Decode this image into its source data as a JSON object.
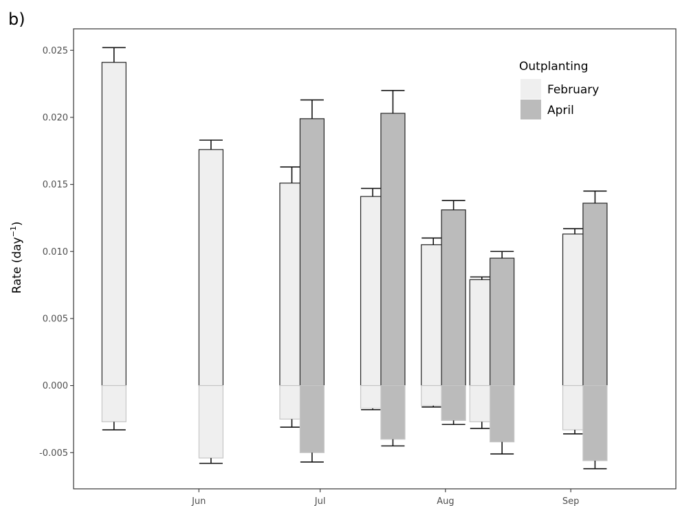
{
  "panel_label": "b)",
  "chart_data": {
    "type": "bar",
    "ylabel": "Rate (day",
    "ylabel_superscript": "−1",
    "ylabel_close": ")",
    "xlabel": "",
    "ylim": [
      -0.0077,
      0.0266
    ],
    "y_ticks": [
      "0.025",
      "0.020",
      "0.015",
      "0.010",
      "0.005",
      "0.000",
      "-0.005"
    ],
    "y_tick_values": [
      0.025,
      0.02,
      0.015,
      0.01,
      0.005,
      0.0,
      -0.005
    ],
    "x_axis": {
      "type": "date",
      "range": [
        "2023-05-01",
        "2023-09-27"
      ],
      "ticks": [
        {
          "date": "2023-06-01",
          "label": "Jun"
        },
        {
          "date": "2023-07-01",
          "label": "Jul"
        },
        {
          "date": "2023-08-01",
          "label": "Aug"
        },
        {
          "date": "2023-09-01",
          "label": "Sep"
        }
      ]
    },
    "grid": false,
    "legend": {
      "title": "Outplanting",
      "position": "top-right",
      "entries": [
        {
          "name": "February",
          "color": "#efefef"
        },
        {
          "name": "April",
          "color": "#bbbbbb"
        }
      ]
    },
    "series": [
      {
        "name": "February",
        "color": "#efefef",
        "points": [
          {
            "date": "2023-05-11",
            "value": 0.0241,
            "err_hi": 0.0252
          },
          {
            "date": "2023-05-11",
            "value": -0.0027,
            "err_lo": -0.0033
          },
          {
            "date": "2023-06-04",
            "value": 0.0176,
            "err_hi": 0.0183
          },
          {
            "date": "2023-06-04",
            "value": -0.0054,
            "err_lo": -0.0058
          },
          {
            "date": "2023-06-24",
            "value": 0.0151,
            "err_hi": 0.0163
          },
          {
            "date": "2023-06-24",
            "value": -0.0025,
            "err_lo": -0.0031
          },
          {
            "date": "2023-07-14",
            "value": 0.0141,
            "err_hi": 0.0147
          },
          {
            "date": "2023-07-14",
            "value": -0.0017,
            "err_lo": -0.0018
          },
          {
            "date": "2023-07-29",
            "value": 0.0105,
            "err_hi": 0.011
          },
          {
            "date": "2023-07-29",
            "value": -0.0015,
            "err_lo": -0.0016
          },
          {
            "date": "2023-08-10",
            "value": 0.0079,
            "err_hi": 0.0081
          },
          {
            "date": "2023-08-10",
            "value": -0.0027,
            "err_lo": -0.0032
          },
          {
            "date": "2023-09-02",
            "value": 0.0113,
            "err_hi": 0.0117
          },
          {
            "date": "2023-09-02",
            "value": -0.0033,
            "err_lo": -0.0036
          }
        ]
      },
      {
        "name": "April",
        "color": "#bbbbbb",
        "points": [
          {
            "date": "2023-06-29",
            "value": 0.0199,
            "err_hi": 0.0213
          },
          {
            "date": "2023-06-29",
            "value": -0.005,
            "err_lo": -0.0057
          },
          {
            "date": "2023-07-19",
            "value": 0.0203,
            "err_hi": 0.022
          },
          {
            "date": "2023-07-19",
            "value": -0.004,
            "err_lo": -0.0045
          },
          {
            "date": "2023-08-03",
            "value": 0.0131,
            "err_hi": 0.0138
          },
          {
            "date": "2023-08-03",
            "value": -0.0026,
            "err_lo": -0.0029
          },
          {
            "date": "2023-08-15",
            "value": 0.0095,
            "err_hi": 0.01
          },
          {
            "date": "2023-08-15",
            "value": -0.0042,
            "err_lo": -0.0051
          },
          {
            "date": "2023-09-07",
            "value": 0.0136,
            "err_hi": 0.0145
          },
          {
            "date": "2023-09-07",
            "value": -0.0056,
            "err_lo": -0.0062
          }
        ]
      }
    ]
  }
}
